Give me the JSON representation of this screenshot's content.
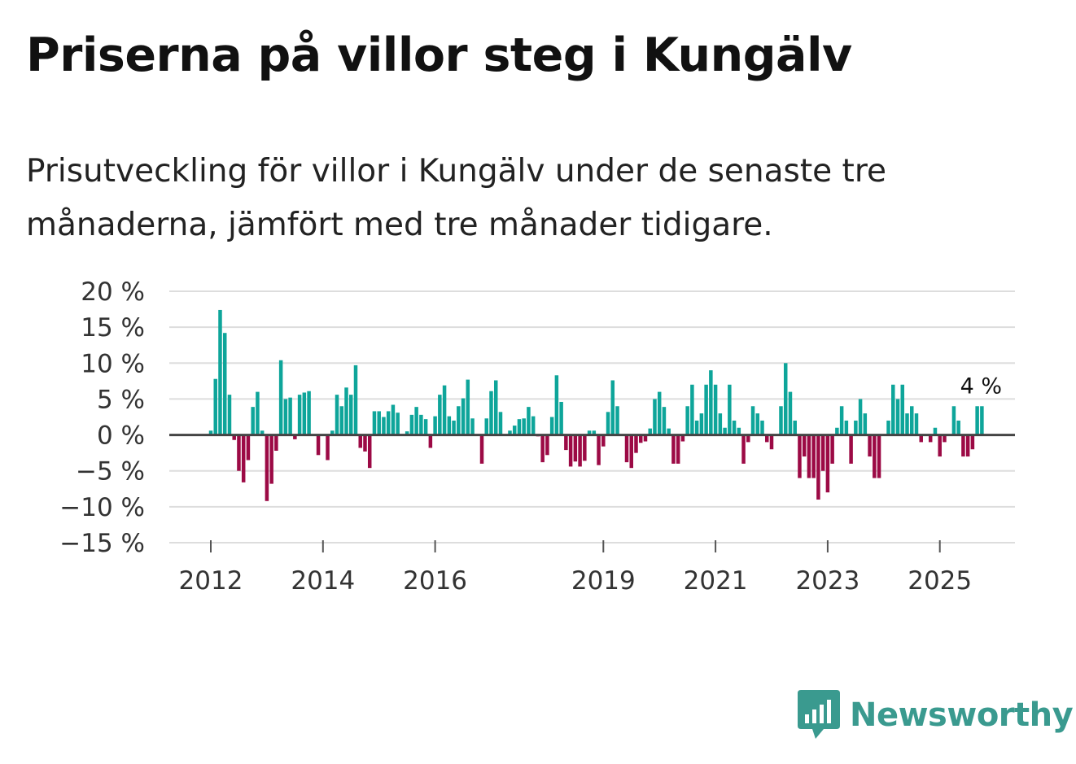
{
  "title": "Priserna på villor steg i Kungälv",
  "subtitle": "Prisutveckling för villor i Kungälv under de senaste tre månaderna, jämfört med tre månader tidigare.",
  "brand": {
    "name": "Newsworthy",
    "icon": "newsworthy-logo-icon"
  },
  "colors": {
    "positive": "#0ea59a",
    "negative": "#9c0a45",
    "zero_line": "#444444",
    "grid": "#dddddd",
    "brand": "#3a9a8f"
  },
  "chart_data": {
    "type": "bar",
    "title": "Priserna på villor steg i Kungälv",
    "xlabel": "",
    "ylabel": "",
    "ylim": [
      -15,
      20
    ],
    "yticks": [
      20,
      15,
      10,
      5,
      0,
      -5,
      -10,
      -15
    ],
    "ytick_labels": [
      "20 %",
      "15 %",
      "10 %",
      "5 %",
      "0 %",
      "−5 %",
      "−10 %",
      "−15 %"
    ],
    "xticks": [
      2012,
      2014,
      2016,
      2019,
      2021,
      2023,
      2025
    ],
    "xtick_labels": [
      "2012",
      "2014",
      "2016",
      "2019",
      "2021",
      "2023",
      "2025"
    ],
    "start": "2012-01",
    "frequency": "monthly",
    "annotation": {
      "label": "4 %",
      "value": 4
    },
    "values": [
      0.6,
      7.8,
      17.4,
      14.2,
      5.6,
      -0.7,
      -5.0,
      -6.6,
      -3.5,
      3.9,
      6.0,
      0.6,
      -9.2,
      -6.8,
      -2.2,
      10.4,
      5.0,
      5.2,
      -0.6,
      5.6,
      5.9,
      6.1,
      0,
      -2.8,
      0,
      -3.5,
      0.6,
      5.6,
      4.0,
      6.6,
      5.6,
      9.7,
      -1.8,
      -2.3,
      -4.6,
      3.3,
      3.3,
      2.5,
      3.3,
      4.2,
      3.1,
      0,
      0.5,
      2.8,
      3.9,
      2.8,
      2.2,
      -1.8,
      2.6,
      5.6,
      6.9,
      2.6,
      2.0,
      4.0,
      5.1,
      7.7,
      2.3,
      0,
      -4.0,
      2.3,
      6.1,
      7.6,
      3.2,
      0,
      0.6,
      1.3,
      2.2,
      2.3,
      3.9,
      2.6,
      -0.2,
      -3.8,
      -2.8,
      2.5,
      8.3,
      4.6,
      -2.1,
      -4.4,
      -3.7,
      -4.4,
      -3.6,
      0.6,
      0.6,
      -4.2,
      -1.6,
      3.2,
      7.6,
      4.0,
      0,
      -3.8,
      -4.6,
      -2.5,
      -1.1,
      -0.9,
      0.9,
      5.0,
      6.0,
      3.9,
      0.9,
      -4.0,
      -4.0,
      -0.9,
      4.0,
      7.0,
      2.0,
      3.0,
      7.0,
      9.0,
      7.0,
      3.0,
      1.0,
      7.0,
      2.0,
      1.0,
      -4.0,
      -1.0,
      4.0,
      3.0,
      2.0,
      -1.0,
      -2.0,
      0,
      4.0,
      10.0,
      6.0,
      2.0,
      -6.0,
      -3.0,
      -6.0,
      -6.0,
      -9.0,
      -5.0,
      -8.0,
      -4.0,
      1.0,
      4.0,
      2.0,
      -4.0,
      2.0,
      5.0,
      3.0,
      -3.0,
      -6.0,
      -6.0,
      0,
      2.0,
      7.0,
      5.0,
      7.0,
      3.0,
      4.0,
      3.0,
      -1.0,
      0,
      -1.0,
      1.0,
      -3.0,
      -1.0,
      0,
      4.0,
      2.0,
      -3.0,
      -3.0,
      -2.0,
      4.0,
      4.0
    ]
  }
}
